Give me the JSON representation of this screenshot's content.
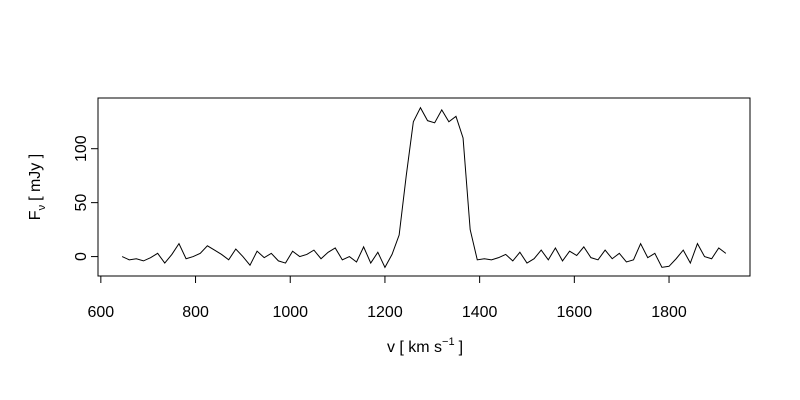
{
  "chart_data": {
    "type": "line",
    "xlabel": {
      "text": "v [ km s",
      "sup": "−1",
      "end": "]"
    },
    "ylabel": {
      "text": "F",
      "sub": "ν",
      "unit": "[ mJy ]"
    },
    "color": "#000000",
    "x": [
      645,
      660,
      675,
      690,
      705,
      720,
      735,
      750,
      765,
      780,
      795,
      810,
      825,
      840,
      855,
      870,
      885,
      900,
      915,
      930,
      945,
      960,
      975,
      990,
      1005,
      1020,
      1035,
      1050,
      1065,
      1080,
      1095,
      1110,
      1125,
      1140,
      1155,
      1170,
      1185,
      1200,
      1215,
      1230,
      1245,
      1260,
      1275,
      1290,
      1305,
      1320,
      1335,
      1350,
      1365,
      1380,
      1395,
      1410,
      1425,
      1440,
      1455,
      1470,
      1485,
      1500,
      1515,
      1530,
      1545,
      1560,
      1575,
      1590,
      1605,
      1620,
      1635,
      1650,
      1665,
      1680,
      1695,
      1710,
      1725,
      1740,
      1755,
      1770,
      1785,
      1800,
      1815,
      1830,
      1845,
      1860,
      1875,
      1890,
      1905,
      1920
    ],
    "values": [
      0,
      -3,
      -2,
      -4,
      -1,
      3,
      -6,
      2,
      12,
      -2,
      0,
      3,
      10,
      6,
      2,
      -3,
      7,
      0,
      -8,
      5,
      -1,
      3,
      -4,
      -6,
      5,
      0,
      2,
      6,
      -2,
      4,
      8,
      -3,
      0,
      -5,
      9,
      -6,
      4,
      -10,
      2,
      20,
      75,
      125,
      138,
      126,
      124,
      136,
      125,
      130,
      110,
      25,
      -3,
      -2,
      -3,
      -1,
      2,
      -4,
      4,
      -6,
      -2,
      6,
      -3,
      8,
      -4,
      5,
      1,
      9,
      -1,
      -3,
      6,
      -2,
      3,
      -5,
      -3,
      12,
      -1,
      3,
      -10,
      -9,
      -2,
      6,
      -6,
      12,
      0,
      -2,
      8,
      3
    ],
    "xlim": [
      594,
      1971
    ],
    "ylim": [
      -18,
      147
    ],
    "xticks": [
      600,
      800,
      1000,
      1200,
      1400,
      1600,
      1800
    ],
    "yticks": [
      0,
      50,
      100
    ]
  }
}
